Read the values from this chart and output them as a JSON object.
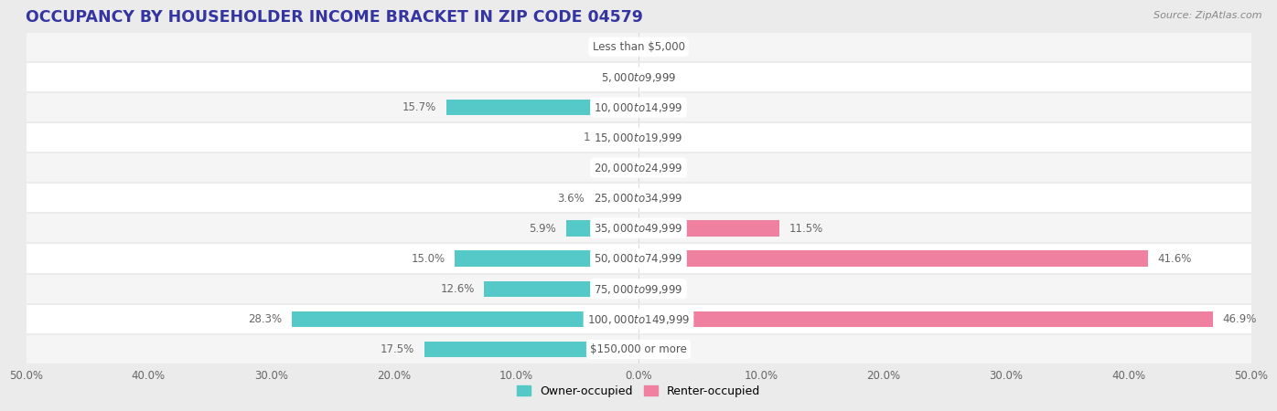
{
  "title": "OCCUPANCY BY HOUSEHOLDER INCOME BRACKET IN ZIP CODE 04579",
  "source": "Source: ZipAtlas.com",
  "categories": [
    "Less than $5,000",
    "$5,000 to $9,999",
    "$10,000 to $14,999",
    "$15,000 to $19,999",
    "$20,000 to $24,999",
    "$25,000 to $34,999",
    "$35,000 to $49,999",
    "$50,000 to $74,999",
    "$75,000 to $99,999",
    "$100,000 to $149,999",
    "$150,000 or more"
  ],
  "owner_values": [
    0.0,
    0.0,
    15.7,
    1.5,
    0.0,
    3.6,
    5.9,
    15.0,
    12.6,
    28.3,
    17.5
  ],
  "renter_values": [
    0.0,
    0.0,
    0.0,
    0.0,
    0.0,
    0.0,
    11.5,
    41.6,
    0.0,
    46.9,
    0.0
  ],
  "owner_color": "#55c8c8",
  "renter_color": "#f080a0",
  "background_color": "#ebebeb",
  "row_bg_colors": [
    "#f5f5f5",
    "#ffffff"
  ],
  "xlim": 50.0,
  "title_color": "#3535a0",
  "title_fontsize": 12.5,
  "label_fontsize": 8.5,
  "tick_fontsize": 8.5,
  "source_fontsize": 8,
  "bar_height": 0.52,
  "label_pill_color": "#ffffff",
  "label_text_color": "#555555",
  "value_text_color": "#666666"
}
